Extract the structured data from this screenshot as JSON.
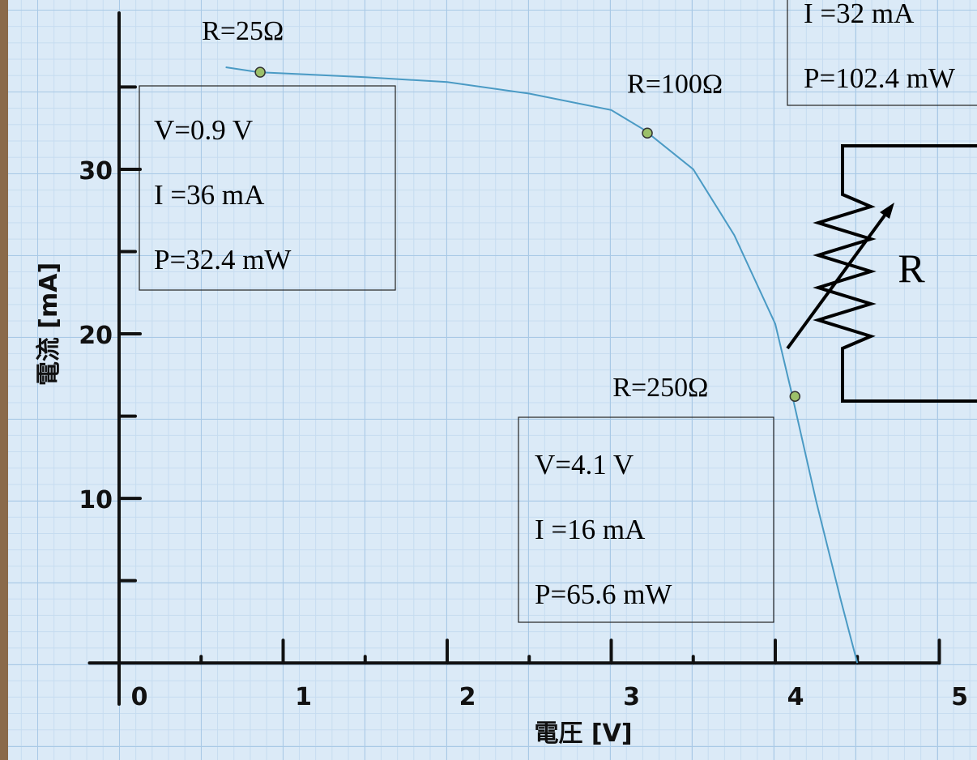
{
  "chart_data": {
    "type": "line",
    "x_label": "電圧 [V]",
    "y_label": "電流 [mA]",
    "xlim": [
      -0.2,
      5.2
    ],
    "ylim": [
      -2.5,
      39.5
    ],
    "xticks": [
      0,
      1,
      2,
      3,
      4,
      5
    ],
    "yticks": [
      10,
      20,
      30
    ],
    "series": [
      {
        "color": "#4a9ac4",
        "x": [
          0.65,
          0.85,
          1.5,
          2,
          2.5,
          3,
          3.2,
          3.5,
          3.75,
          4,
          4.1,
          4.25,
          4.4,
          4.5
        ],
        "values": [
          36.2,
          35.9,
          35.6,
          35.3,
          34.6,
          33.6,
          32.4,
          30,
          26,
          20.6,
          16.4,
          9.8,
          3.8,
          0
        ]
      }
    ],
    "points": [
      {
        "label": "R=25Ω",
        "x": 0.86,
        "y": 35.9
      },
      {
        "label": "R=100Ω",
        "x": 3.22,
        "y": 32.2
      },
      {
        "label": "R=250Ω",
        "x": 4.12,
        "y": 16.2
      }
    ],
    "point_color": "#9cc06a",
    "boxes": [
      [
        "V=0.9 V",
        "I =36 mA",
        "P=32.4 mW"
      ],
      [
        "V=4.1 V",
        "I =16 mA",
        "P=65.6 mW"
      ],
      [
        "I =32 mA",
        "P=102.4 mW"
      ]
    ],
    "circuit_label": "R"
  }
}
